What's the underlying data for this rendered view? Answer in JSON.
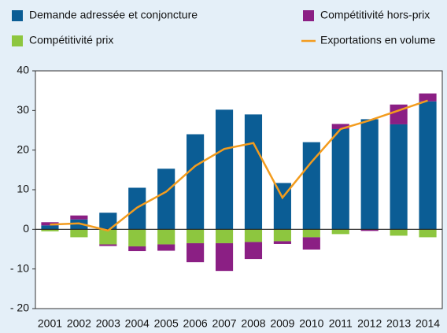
{
  "chart_data": {
    "type": "bar",
    "categories": [
      "2001",
      "2002",
      "2003",
      "2004",
      "2005",
      "2006",
      "2007",
      "2008",
      "2009",
      "2010",
      "2011",
      "2012",
      "2013",
      "2014"
    ],
    "series": [
      {
        "name": "Demande adressée et conjoncture",
        "color": "#0b5d95",
        "values": [
          1,
          2.5,
          4.2,
          10.5,
          15.3,
          24,
          30.2,
          29,
          11.7,
          22,
          25.3,
          27.8,
          26.5,
          32.3
        ]
      },
      {
        "name": "Compétitivité hors-prix",
        "color": "#8b1f84",
        "values": [
          0.8,
          1,
          -0.4,
          -1.2,
          -1.6,
          -4.8,
          -7,
          -4.3,
          -0.7,
          -3.1,
          1.3,
          -0.4,
          5,
          2
        ]
      },
      {
        "name": "Compétitivité prix",
        "color": "#8dc63f",
        "values": [
          -0.5,
          -2,
          -3.8,
          -4.3,
          -3.8,
          -3.5,
          -3.5,
          -3.2,
          -3,
          -2,
          -1.2,
          0,
          -1.6,
          -2
        ]
      },
      {
        "name": "Exportations en volume",
        "color": "#f39c1e",
        "type": "line",
        "values": [
          1.2,
          1.5,
          -0.3,
          5.5,
          9.5,
          16,
          20.3,
          21.8,
          8,
          17,
          25.3,
          27.5,
          30,
          32.5
        ]
      }
    ],
    "ylim": [
      -20,
      40
    ],
    "yticks": [
      {
        "value": -20,
        "label": "- 20"
      },
      {
        "value": -10,
        "label": "- 10"
      },
      0,
      10,
      20,
      30,
      40
    ]
  }
}
